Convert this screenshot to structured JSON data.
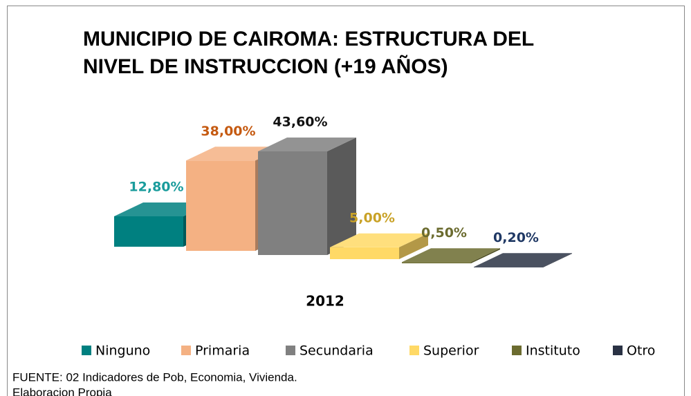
{
  "chart_data": {
    "type": "bar3d",
    "title": "MUNICIPIO DE CAIROMA:  ESTRUCTURA DEL",
    "title_line2": "NIVEL DE  INSTRUCCION (+19 AÑOS)",
    "categories": [
      "2012"
    ],
    "series": [
      {
        "name": "Ninguno",
        "color": "#008080",
        "label_color": "#1a9c9c",
        "values": [
          12.8
        ],
        "value_labels": [
          "12,80%"
        ]
      },
      {
        "name": "Primaria",
        "color": "#f4b183",
        "label_color": "#c55a11",
        "values": [
          38.0
        ],
        "value_labels": [
          "38,00%"
        ]
      },
      {
        "name": "Secundaria",
        "color": "#808080",
        "label_color": "#111111",
        "values": [
          43.6
        ],
        "value_labels": [
          "43,60%"
        ]
      },
      {
        "name": "Superior",
        "color": "#ffd966",
        "label_color": "#c9a227",
        "values": [
          5.0
        ],
        "value_labels": [
          "5,00%"
        ]
      },
      {
        "name": "Instituto",
        "color": "#6b6b2f",
        "label_color": "#6b6b2f",
        "values": [
          0.5
        ],
        "value_labels": [
          "0,50%"
        ]
      },
      {
        "name": "Otro",
        "color": "#2a3244",
        "label_color": "#1f3864",
        "values": [
          0.2
        ],
        "value_labels": [
          "0,20%"
        ]
      }
    ],
    "source": "FUENTE: 02 Indicadores de Pob, Economia, Vivienda.",
    "source_line2": "Elaboracion Propia"
  }
}
